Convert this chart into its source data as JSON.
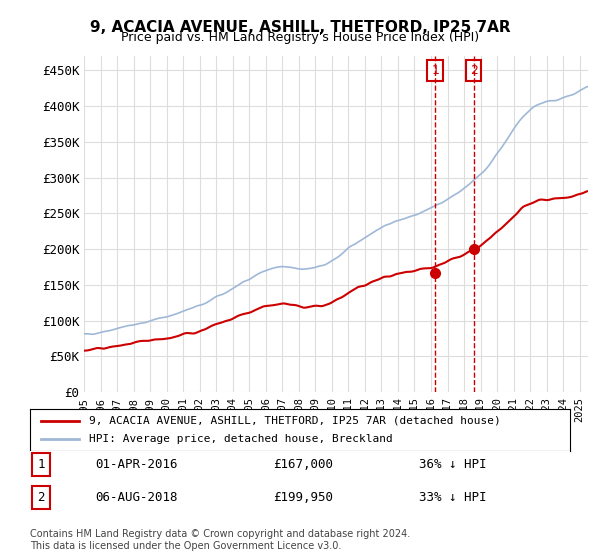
{
  "title": "9, ACACIA AVENUE, ASHILL, THETFORD, IP25 7AR",
  "subtitle": "Price paid vs. HM Land Registry's House Price Index (HPI)",
  "ylabel_ticks": [
    "£0",
    "£50K",
    "£100K",
    "£150K",
    "£200K",
    "£250K",
    "£300K",
    "£350K",
    "£400K",
    "£450K"
  ],
  "ytick_values": [
    0,
    50000,
    100000,
    150000,
    200000,
    250000,
    300000,
    350000,
    400000,
    450000
  ],
  "ylim": [
    0,
    470000
  ],
  "xlim_start": 1995.0,
  "xlim_end": 2025.5,
  "hpi_color": "#a0b8d8",
  "price_color": "#cc0000",
  "sale1_x": 2016.25,
  "sale1_y": 167000,
  "sale2_x": 2018.58,
  "sale2_y": 199950,
  "vline_color": "#cc0000",
  "vline_style": "--",
  "legend_label1": "9, ACACIA AVENUE, ASHILL, THETFORD, IP25 7AR (detached house)",
  "legend_label2": "HPI: Average price, detached house, Breckland",
  "note1_num": "1",
  "note1_date": "01-APR-2016",
  "note1_price": "£167,000",
  "note1_pct": "36% ↓ HPI",
  "note2_num": "2",
  "note2_date": "06-AUG-2018",
  "note2_price": "£199,950",
  "note2_pct": "33% ↓ HPI",
  "footnote": "Contains HM Land Registry data © Crown copyright and database right 2024.\nThis data is licensed under the Open Government Licence v3.0.",
  "background_color": "#ffffff",
  "grid_color": "#dddddd",
  "marker_color1": "#cc0000",
  "marker_color2": "#cc0000"
}
